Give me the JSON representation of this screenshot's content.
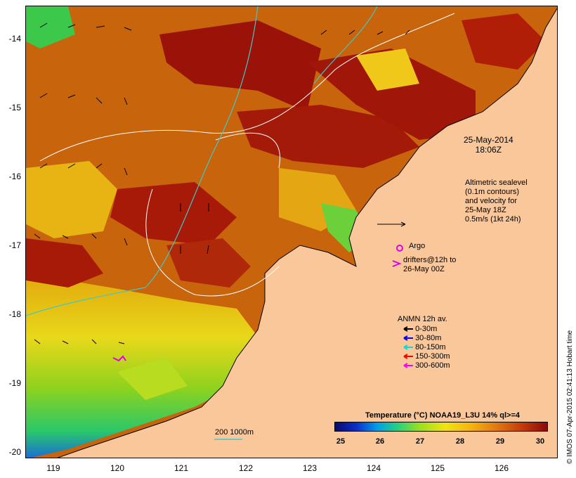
{
  "map": {
    "y_ticks": [
      "-14",
      "-15",
      "-16",
      "-17",
      "-18",
      "-19",
      "-20"
    ],
    "x_ticks": [
      "119",
      "120",
      "121",
      "122",
      "123",
      "124",
      "125",
      "126"
    ],
    "date_line1": "25-May-2014",
    "date_line2": "18:06Z",
    "altimetry_lines": [
      "Altimetric sealevel",
      "(0.1m contours)",
      "and velocity for",
      "25-May 18Z",
      "0.5m/s (1kt 24h)"
    ],
    "argo_label": "Argo",
    "drifter_line1": "drifters@12h to",
    "drifter_line2": "26-May 00Z",
    "anmn_title": "ANMN 12h av.",
    "anmn_legend": [
      {
        "label": "0-30m",
        "color": "#000000"
      },
      {
        "label": "30-80m",
        "color": "#0000ff"
      },
      {
        "label": "80-150m",
        "color": "#00e0e0"
      },
      {
        "label": "150-300m",
        "color": "#ff0000"
      },
      {
        "label": "300-600m",
        "color": "#ff00ff"
      }
    ],
    "scale_label": "200  1000m",
    "colorbar_title": "Temperature (°C) NOAA19_L3U 14% ql>=4",
    "colorbar_ticks": [
      "25",
      "26",
      "27",
      "28",
      "29",
      "30"
    ],
    "credit": "© IMOS 07-Apr-2015 02:41:13 Hobart time"
  }
}
